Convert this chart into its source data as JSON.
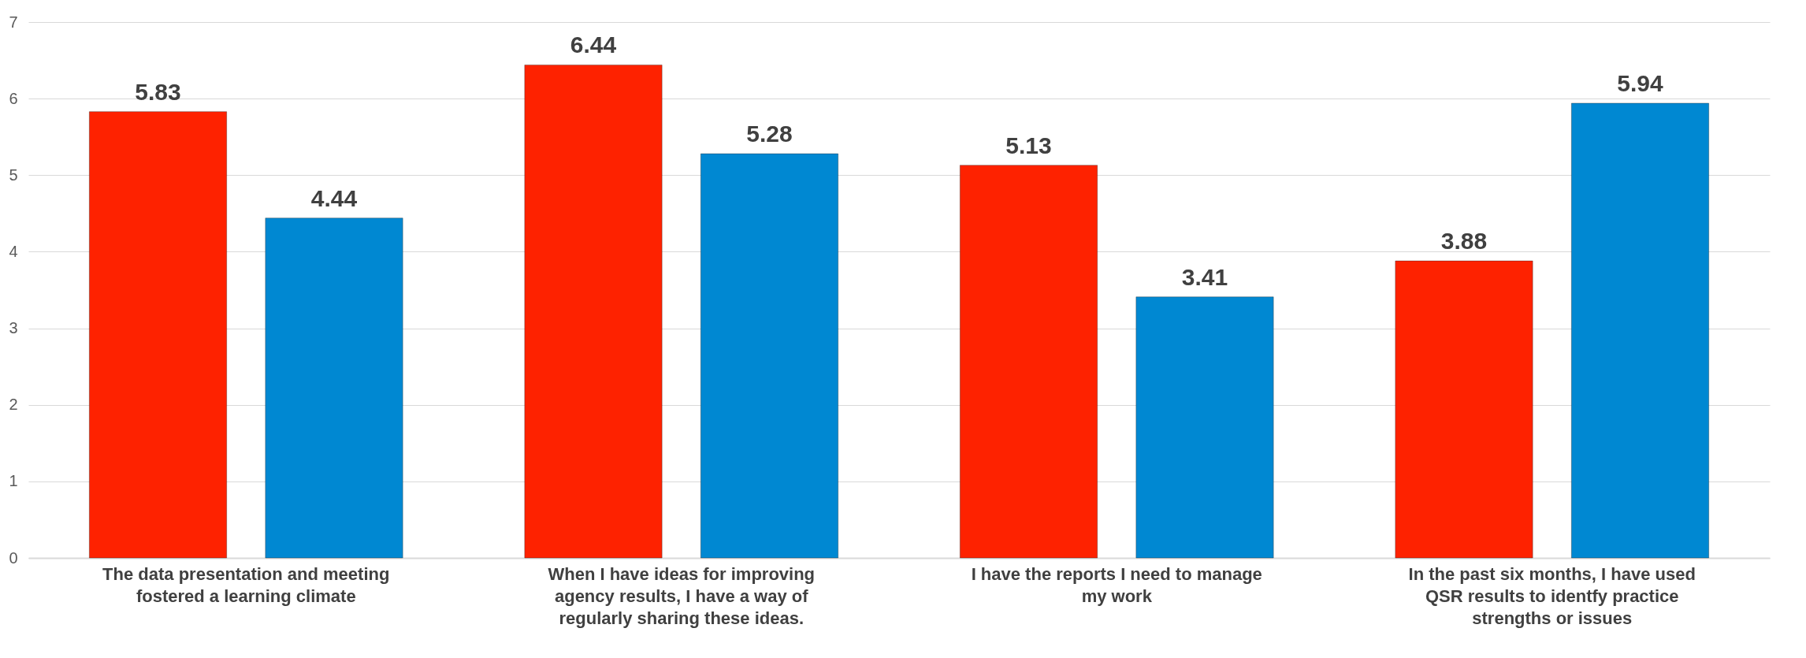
{
  "chart_data": {
    "type": "bar",
    "categories": [
      "The data presentation and meeting fostered a learning climate",
      "When I have ideas for improving agency results, I have a way of regularly sharing these ideas.",
      "I have the reports I need to manage my work",
      "In the past six months, I have used QSR results to identfy practice strengths or issues"
    ],
    "series": [
      {
        "color": "#fe2200",
        "values": [
          5.83,
          6.44,
          5.13,
          3.88
        ]
      },
      {
        "color": "#0088d2",
        "values": [
          4.44,
          5.28,
          3.41,
          5.94
        ]
      }
    ],
    "ylim": [
      0,
      7
    ],
    "yticks": [
      0,
      1,
      2,
      3,
      4,
      5,
      6,
      7
    ],
    "grid": "y",
    "data_labels": true
  }
}
